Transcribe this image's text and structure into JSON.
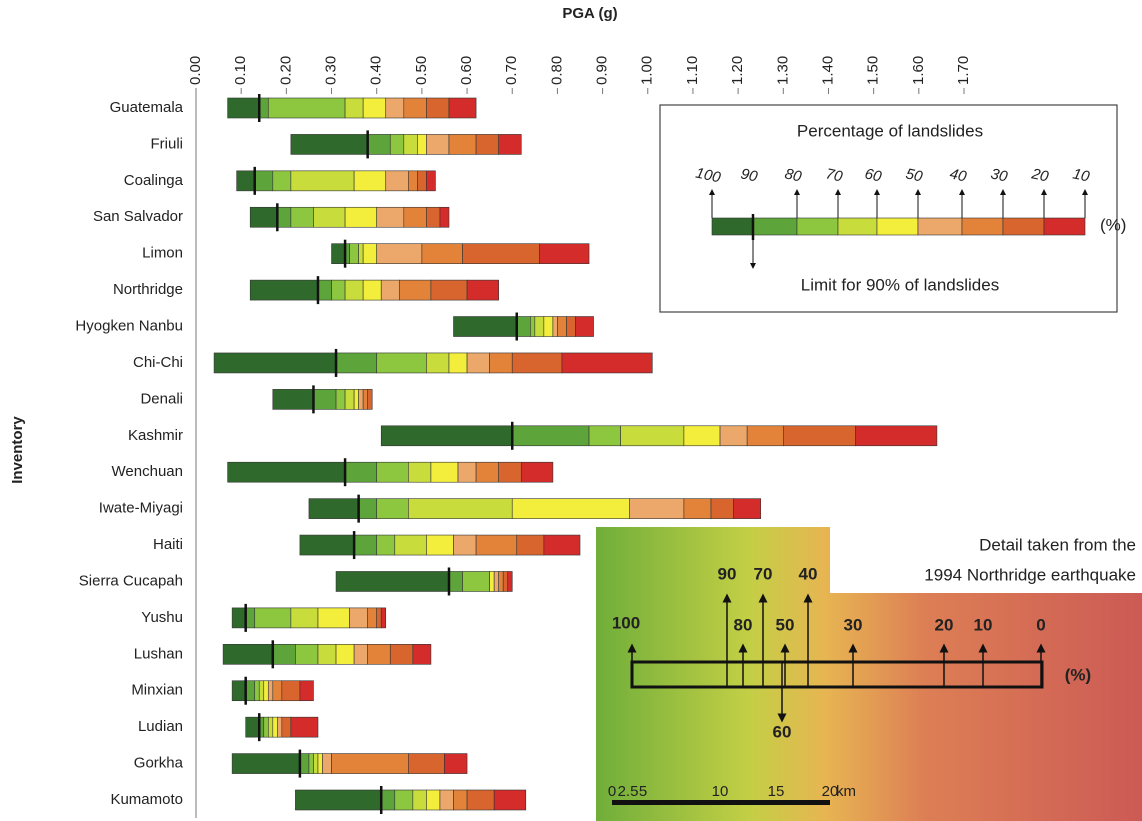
{
  "chart_data": {
    "type": "range_bar",
    "x_label": "PGA (g)",
    "y_label": "Inventory",
    "xlim": [
      0,
      1.7
    ],
    "xticks": [
      {
        "value": 0,
        "label": "0.00"
      },
      {
        "value": 0.1,
        "label": "0.10"
      },
      {
        "value": 0.2,
        "label": "0.20"
      },
      {
        "value": 0.3,
        "label": "0.30"
      },
      {
        "value": 0.4,
        "label": "0.40"
      },
      {
        "value": 0.5,
        "label": "0.50"
      },
      {
        "value": 0.6,
        "label": "0.60"
      },
      {
        "value": 0.7,
        "label": "0.70"
      },
      {
        "value": 0.8,
        "label": "0.80"
      },
      {
        "value": 0.9,
        "label": "0.90"
      },
      {
        "value": 1.0,
        "label": "1.00"
      },
      {
        "value": 1.1,
        "label": "1.10"
      },
      {
        "value": 1.2,
        "label": "1.20"
      },
      {
        "value": 1.3,
        "label": "1.30"
      },
      {
        "value": 1.4,
        "label": "1.40"
      },
      {
        "value": 1.5,
        "label": "1.50"
      },
      {
        "value": 1.6,
        "label": "1.60"
      },
      {
        "value": 1.7,
        "label": "1.70"
      }
    ],
    "categories": [
      "Guatemala",
      "Friuli",
      "Coalinga",
      "San Salvador",
      "Limon",
      "Northridge",
      "Hyogken Nanbu",
      "Chi-Chi",
      "Denali",
      "Kashmir",
      "Wenchuan",
      "Iwate-Miyagi",
      "Haiti",
      "Sierra Cucapah",
      "Yushu",
      "Lushan",
      "Minxian",
      "Ludian",
      "Gorkha",
      "Kumamoto"
    ],
    "series": [
      {
        "name": "100",
        "color": "#2f6a2c",
        "values": [
          0.07,
          0.21,
          0.09,
          0.12,
          0.3,
          0.12,
          0.57,
          0.04,
          0.17,
          0.41,
          0.07,
          0.25,
          0.23,
          0.31,
          0.08,
          0.06,
          0.08,
          0.11,
          0.08,
          0.22
        ]
      },
      {
        "name": "90",
        "color": "#5da53a",
        "values": [
          0.14,
          0.38,
          0.13,
          0.18,
          0.33,
          0.27,
          0.71,
          0.31,
          0.26,
          0.7,
          0.33,
          0.36,
          0.35,
          0.56,
          0.11,
          0.17,
          0.11,
          0.14,
          0.23,
          0.41
        ]
      },
      {
        "name": "80",
        "color": "#8dc63f",
        "values": [
          0.16,
          0.43,
          0.17,
          0.21,
          0.34,
          0.3,
          0.74,
          0.4,
          0.31,
          0.87,
          0.4,
          0.4,
          0.4,
          0.59,
          0.13,
          0.22,
          0.13,
          0.15,
          0.25,
          0.44
        ]
      },
      {
        "name": "70",
        "color": "#c8dc3c",
        "values": [
          0.33,
          0.46,
          0.21,
          0.26,
          0.36,
          0.33,
          0.75,
          0.51,
          0.33,
          0.94,
          0.47,
          0.47,
          0.44,
          0.65,
          0.21,
          0.27,
          0.14,
          0.16,
          0.26,
          0.48
        ]
      },
      {
        "name": "60",
        "color": "#f2ee3b",
        "values": [
          0.37,
          0.49,
          0.35,
          0.33,
          0.37,
          0.37,
          0.77,
          0.56,
          0.35,
          1.08,
          0.52,
          0.7,
          0.51,
          0.65,
          0.27,
          0.31,
          0.15,
          0.17,
          0.27,
          0.51
        ]
      },
      {
        "name": "50",
        "color": "#eba86a",
        "values": [
          0.42,
          0.51,
          0.42,
          0.4,
          0.4,
          0.41,
          0.79,
          0.6,
          0.36,
          1.16,
          0.58,
          0.96,
          0.57,
          0.66,
          0.34,
          0.35,
          0.16,
          0.18,
          0.28,
          0.54
        ]
      },
      {
        "name": "40",
        "color": "#e3833a",
        "values": [
          0.46,
          0.56,
          0.47,
          0.46,
          0.5,
          0.45,
          0.8,
          0.65,
          0.37,
          1.22,
          0.62,
          1.08,
          0.62,
          0.67,
          0.38,
          0.38,
          0.17,
          0.19,
          0.3,
          0.57
        ]
      },
      {
        "name": "30",
        "color": "#d9652e",
        "values": [
          0.51,
          0.62,
          0.49,
          0.51,
          0.59,
          0.52,
          0.82,
          0.7,
          0.38,
          1.3,
          0.67,
          1.14,
          0.71,
          0.68,
          0.4,
          0.43,
          0.19,
          0.19,
          0.47,
          0.6
        ]
      },
      {
        "name": "20",
        "color": "#d42b2b",
        "values": [
          0.56,
          0.67,
          0.51,
          0.54,
          0.76,
          0.6,
          0.84,
          0.81,
          0.39,
          1.46,
          0.72,
          1.19,
          0.77,
          0.69,
          0.41,
          0.48,
          0.23,
          0.21,
          0.55,
          0.66
        ]
      },
      {
        "name": "10",
        "values": [
          0.62,
          0.72,
          0.53,
          0.56,
          0.87,
          0.67,
          0.88,
          1.01,
          0.39,
          1.64,
          0.79,
          1.25,
          0.85,
          0.7,
          0.42,
          0.52,
          0.26,
          0.27,
          0.6,
          0.73
        ]
      }
    ],
    "legend": {
      "title": "Percentage of landslides",
      "unit": "(%)",
      "marker_note": "Limit for 90% of landslides"
    },
    "inset": {
      "title": [
        "Detail taken from the",
        "1994 Northridge earthquake"
      ],
      "labels": [
        "100",
        "90",
        "70",
        "40",
        "80",
        "50",
        "30",
        "20",
        "10",
        "0",
        "60",
        "(%)"
      ],
      "scale": [
        "0",
        "2.5",
        "5",
        "10",
        "15",
        "20",
        "km"
      ]
    }
  }
}
